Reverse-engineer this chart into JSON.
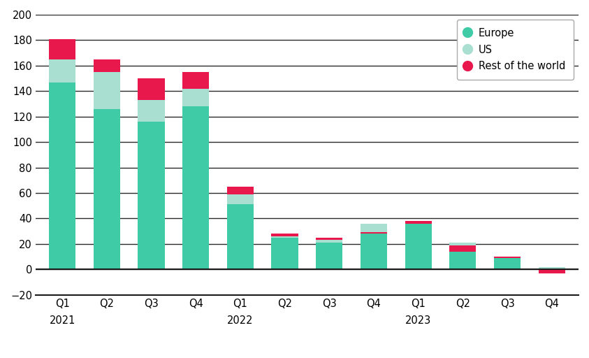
{
  "quarters": [
    "Q1",
    "Q2",
    "Q3",
    "Q4",
    "Q1",
    "Q2",
    "Q3",
    "Q4",
    "Q1",
    "Q2",
    "Q3",
    "Q4"
  ],
  "year_labels": {
    "0": "2021",
    "4": "2022",
    "8": "2023"
  },
  "europe": [
    147,
    126,
    116,
    128,
    51,
    25,
    21,
    36,
    36,
    21,
    9,
    2
  ],
  "us": [
    18,
    29,
    17,
    14,
    8,
    1,
    2,
    -8,
    0,
    -2,
    1,
    -2
  ],
  "rotw": [
    16,
    10,
    17,
    13,
    6,
    2,
    2,
    1,
    2,
    -5,
    -1,
    -3
  ],
  "europe_color": "#3ecba5",
  "us_color": "#a8dfd0",
  "rotw_color": "#e8184d",
  "ylim": [
    -20,
    200
  ],
  "yticks": [
    -20,
    0,
    20,
    40,
    60,
    80,
    100,
    120,
    140,
    160,
    180,
    200
  ],
  "legend_labels": [
    "Europe",
    "US",
    "Rest of the world"
  ],
  "background_color": "#ffffff",
  "grid_color": "#2a2a2a",
  "bar_width": 0.6
}
